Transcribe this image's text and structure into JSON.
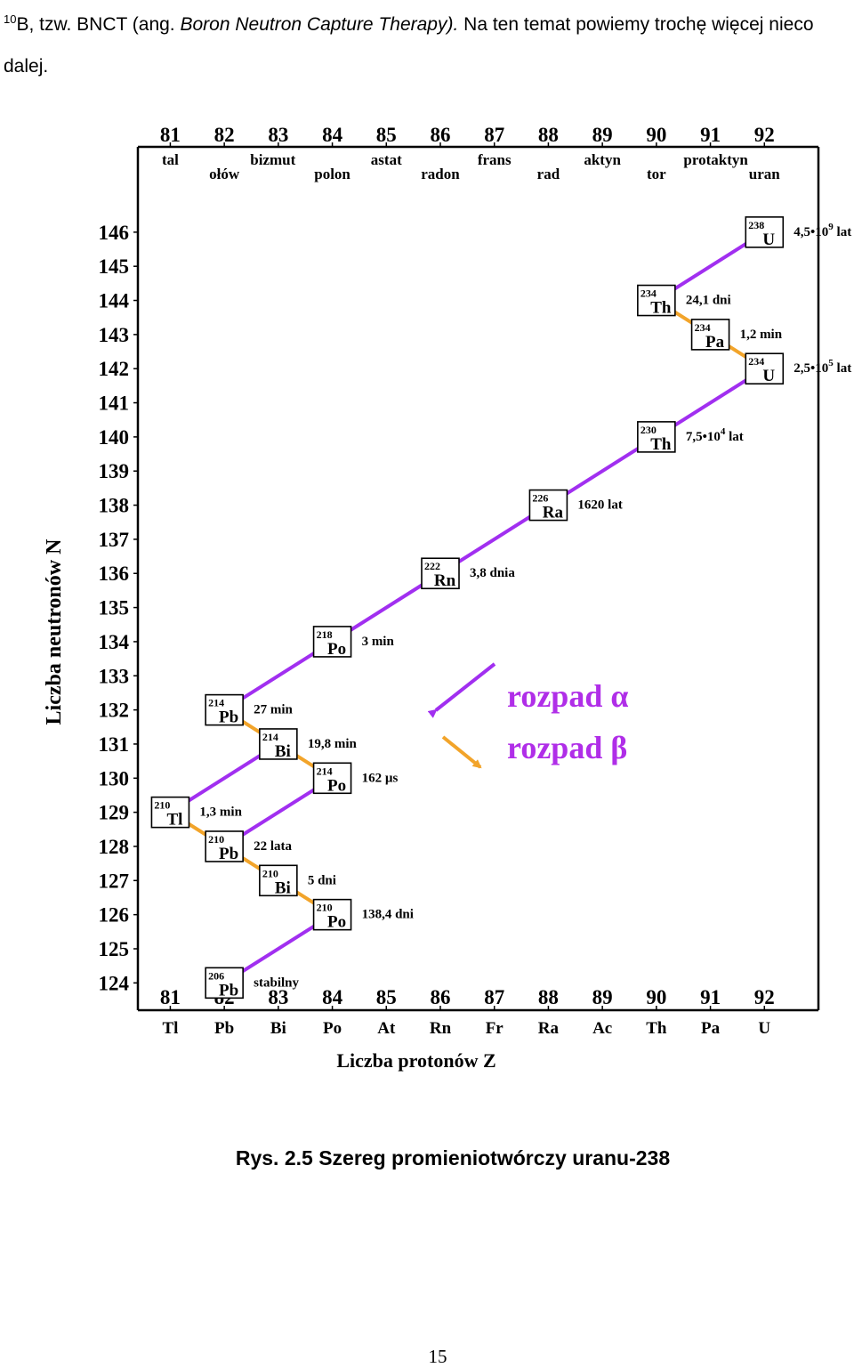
{
  "footnote": {
    "marker": "10",
    "part1": "B, tzw. BNCT (ang. ",
    "part2_italic": "Boron Neutron Capture Therapy).",
    "part3": " Na ten temat powiemy trochę więcej nieco dalej."
  },
  "chart_data": {
    "type": "diagram",
    "ylabel": "Liczba neutronów N",
    "xlabel": "Liczba protonów Z",
    "x_ticks": [
      81,
      82,
      83,
      84,
      85,
      86,
      87,
      88,
      89,
      90,
      91,
      92
    ],
    "y_ticks": [
      124,
      125,
      126,
      127,
      128,
      129,
      130,
      131,
      132,
      133,
      134,
      135,
      136,
      137,
      138,
      139,
      140,
      141,
      142,
      143,
      144,
      145,
      146
    ],
    "xlim": [
      80.4,
      93
    ],
    "ylim": [
      123.2,
      148.5
    ],
    "element_symbols": [
      "Tl",
      "Pb",
      "Bi",
      "Po",
      "At",
      "Rn",
      "Fr",
      "Ra",
      "Ac",
      "Th",
      "Pa",
      "U"
    ],
    "element_names_row1": [
      {
        "z": 81,
        "name": "tal"
      },
      {
        "z": 82.9,
        "name": "bizmut"
      },
      {
        "z": 85,
        "name": "astat"
      },
      {
        "z": 87,
        "name": "frans"
      },
      {
        "z": 89,
        "name": "aktyn"
      },
      {
        "z": 91.1,
        "name": "protaktyn"
      }
    ],
    "element_names_row2": [
      {
        "z": 82,
        "name": "ołów"
      },
      {
        "z": 84,
        "name": "polon"
      },
      {
        "z": 86,
        "name": "radon"
      },
      {
        "z": 88,
        "name": "rad"
      },
      {
        "z": 90,
        "name": "tor"
      },
      {
        "z": 92,
        "name": "uran"
      }
    ],
    "nuclides": [
      {
        "mass": "238",
        "symbol": "U",
        "z": 92,
        "n": 146,
        "half_life": "4,5•10",
        "half_life_exp": "9",
        "half_life_unit": " lat"
      },
      {
        "mass": "234",
        "symbol": "Th",
        "z": 90,
        "n": 144,
        "half_life": "24,1 dni"
      },
      {
        "mass": "234",
        "symbol": "Pa",
        "z": 91,
        "n": 143,
        "half_life": "1,2 min"
      },
      {
        "mass": "234",
        "symbol": "U",
        "z": 92,
        "n": 142,
        "half_life": "2,5•10",
        "half_life_exp": "5",
        "half_life_unit": " lat"
      },
      {
        "mass": "230",
        "symbol": "Th",
        "z": 90,
        "n": 140,
        "half_life": "7,5•10",
        "half_life_exp": "4",
        "half_life_unit": " lat"
      },
      {
        "mass": "226",
        "symbol": "Ra",
        "z": 88,
        "n": 138,
        "half_life": "1620 lat"
      },
      {
        "mass": "222",
        "symbol": "Rn",
        "z": 86,
        "n": 136,
        "half_life": "3,8 dnia"
      },
      {
        "mass": "218",
        "symbol": "Po",
        "z": 84,
        "n": 134,
        "half_life": "3 min"
      },
      {
        "mass": "214",
        "symbol": "Pb",
        "z": 82,
        "n": 132,
        "half_life": "27 min"
      },
      {
        "mass": "214",
        "symbol": "Bi",
        "z": 83,
        "n": 131,
        "half_life": "19,8 min"
      },
      {
        "mass": "214",
        "symbol": "Po",
        "z": 84,
        "n": 130,
        "half_life": "162 µs"
      },
      {
        "mass": "210",
        "symbol": "Tl",
        "z": 81,
        "n": 129,
        "half_life": "1,3 min"
      },
      {
        "mass": "210",
        "symbol": "Pb",
        "z": 82,
        "n": 128,
        "half_life": "22 lata"
      },
      {
        "mass": "210",
        "symbol": "Bi",
        "z": 83,
        "n": 127,
        "half_life": "5 dni"
      },
      {
        "mass": "210",
        "symbol": "Po",
        "z": 84,
        "n": 126,
        "half_life": "138,4 dni"
      },
      {
        "mass": "206",
        "symbol": "Pb",
        "z": 82,
        "n": 124,
        "half_life": "stabilny"
      }
    ],
    "decays": [
      {
        "type": "alpha",
        "from": [
          92,
          146
        ],
        "to": [
          90,
          144
        ]
      },
      {
        "type": "beta",
        "from": [
          90,
          144
        ],
        "to": [
          91,
          143
        ]
      },
      {
        "type": "beta",
        "from": [
          91,
          143
        ],
        "to": [
          92,
          142
        ]
      },
      {
        "type": "alpha",
        "from": [
          92,
          142
        ],
        "to": [
          90,
          140
        ]
      },
      {
        "type": "alpha",
        "from": [
          90,
          140
        ],
        "to": [
          88,
          138
        ]
      },
      {
        "type": "alpha",
        "from": [
          88,
          138
        ],
        "to": [
          86,
          136
        ]
      },
      {
        "type": "alpha",
        "from": [
          86,
          136
        ],
        "to": [
          84,
          134
        ]
      },
      {
        "type": "alpha",
        "from": [
          84,
          134
        ],
        "to": [
          82,
          132
        ]
      },
      {
        "type": "beta",
        "from": [
          82,
          132
        ],
        "to": [
          83,
          131
        ]
      },
      {
        "type": "beta",
        "from": [
          83,
          131
        ],
        "to": [
          84,
          130
        ]
      },
      {
        "type": "alpha",
        "from": [
          83,
          131
        ],
        "to": [
          81,
          129
        ]
      },
      {
        "type": "alpha",
        "from": [
          84,
          130
        ],
        "to": [
          82,
          128
        ]
      },
      {
        "type": "beta",
        "from": [
          81,
          129
        ],
        "to": [
          82,
          128
        ]
      },
      {
        "type": "beta",
        "from": [
          82,
          128
        ],
        "to": [
          83,
          127
        ]
      },
      {
        "type": "beta",
        "from": [
          83,
          127
        ],
        "to": [
          84,
          126
        ]
      },
      {
        "type": "alpha",
        "from": [
          84,
          126
        ],
        "to": [
          82,
          124
        ]
      }
    ],
    "legend": {
      "alpha_label": "rozpad",
      "alpha_symbol": "α",
      "beta_label": "rozpad",
      "beta_symbol": "β"
    },
    "colors": {
      "alpha": "#a12ff0",
      "beta": "#f2a42a",
      "legend_text": "#b02ee8"
    }
  },
  "caption": "Rys. 2.5 Szereg promieniotwórczy uranu-238",
  "page_number": "15"
}
